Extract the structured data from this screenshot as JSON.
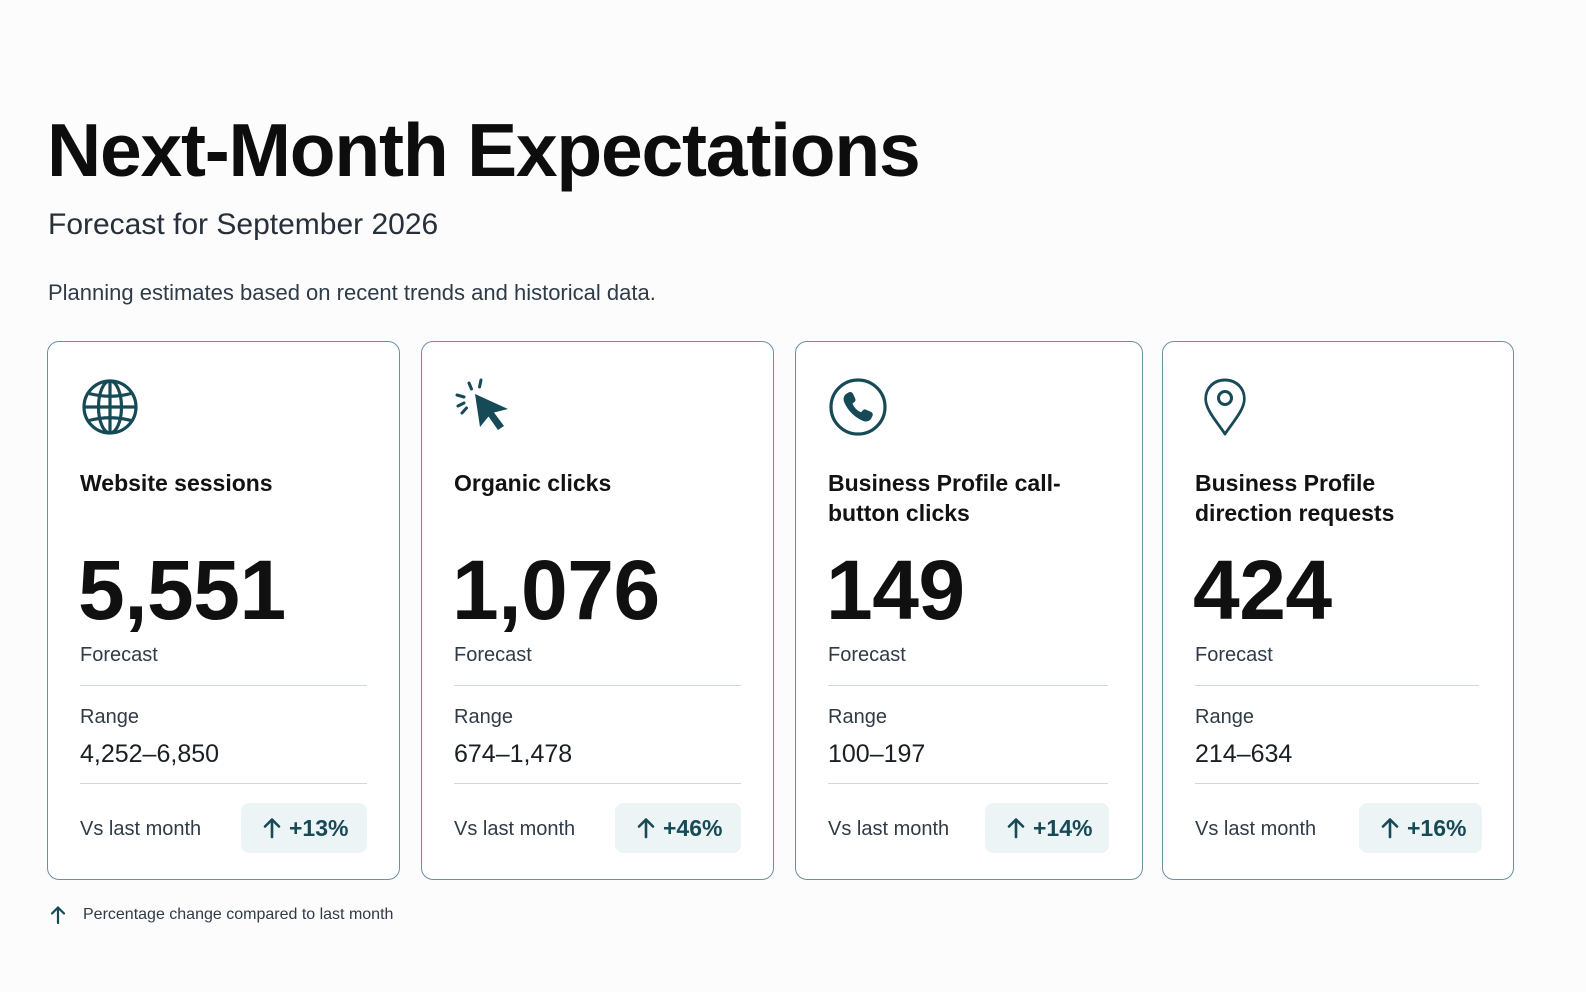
{
  "header": {
    "title": "Next-Month Expectations",
    "subtitle": "Forecast for September 2026",
    "description": "Planning estimates based on recent trends and historical data."
  },
  "colors": {
    "accent": "#154a56",
    "card_border": "#6d8fa2",
    "badge_background": "#edf4f5",
    "divider": "#cfd8de"
  },
  "cards": [
    {
      "icon": "globe-icon",
      "label": "Website sessions",
      "value": "5,551",
      "value_caption": "Forecast",
      "range_caption": "Range",
      "range": "4,252–6,850",
      "compare_caption": "Vs last month",
      "change": "+13%",
      "change_direction": "up"
    },
    {
      "icon": "cursor-click-icon",
      "label": "Organic clicks",
      "value": "1,076",
      "value_caption": "Forecast",
      "range_caption": "Range",
      "range": "674–1,478",
      "compare_caption": "Vs last month",
      "change": "+46%",
      "change_direction": "up"
    },
    {
      "icon": "phone-icon",
      "label": "Business Profile call-button clicks",
      "value": "149",
      "value_caption": "Forecast",
      "range_caption": "Range",
      "range": "100–197",
      "compare_caption": "Vs last month",
      "change": "+14%",
      "change_direction": "up"
    },
    {
      "icon": "map-pin-icon",
      "label": "Business Profile direction requests",
      "value": "424",
      "value_caption": "Forecast",
      "range_caption": "Range",
      "range": "214–634",
      "compare_caption": "Vs last month",
      "change": "+16%",
      "change_direction": "up"
    }
  ],
  "footnote": {
    "icon": "arrow-up-icon",
    "text": "Percentage change compared to last month"
  }
}
